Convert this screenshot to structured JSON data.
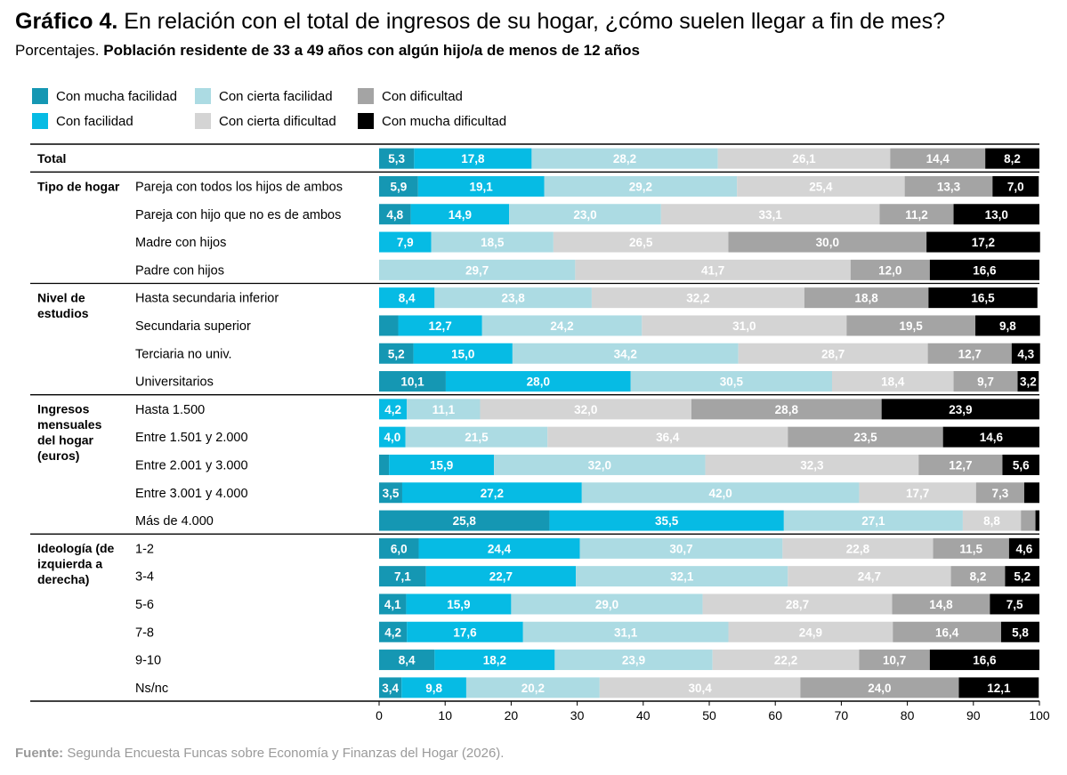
{
  "header": {
    "title_bold": "Gráfico 4.",
    "title_rest": " En relación con el total de ingresos de su hogar, ¿cómo suelen llegar a fin de mes?",
    "subtitle_prefix": "Porcentajes. ",
    "subtitle_bold": "Población residente de 33 a 49 años con algún hijo/a de menos de 12 años"
  },
  "footer": {
    "source_label": "Fuente:",
    "source_text": " Segunda Encuesta Funcas sobre Economía y Finanzas del Hogar (2026)."
  },
  "chart_data": {
    "type": "bar",
    "orientation": "horizontal",
    "stacked": true,
    "xlim": [
      0,
      100
    ],
    "xticks": [
      0,
      10,
      20,
      30,
      40,
      50,
      60,
      70,
      80,
      90,
      100
    ],
    "legend_position": "top-left",
    "series": [
      {
        "name": "Con mucha facilidad",
        "color": "#1597b3"
      },
      {
        "name": "Con facilidad",
        "color": "#06bbe4"
      },
      {
        "name": "Con cierta facilidad",
        "color": "#acdbe3"
      },
      {
        "name": "Con cierta dificultad",
        "color": "#d4d4d4"
      },
      {
        "name": "Con dificultad",
        "color": "#a4a4a4"
      },
      {
        "name": "Con mucha dificultad",
        "color": "#000000"
      }
    ],
    "groups": [
      {
        "label": "Total",
        "rows": [
          {
            "label": "",
            "values": [
              5.3,
              17.8,
              28.2,
              26.1,
              14.4,
              8.2
            ]
          }
        ]
      },
      {
        "label": "Tipo de hogar",
        "rows": [
          {
            "label": "Pareja con todos los hijos de ambos",
            "values": [
              5.9,
              19.1,
              29.2,
              25.4,
              13.3,
              7.0
            ]
          },
          {
            "label": "Pareja con hijo que no es de ambos",
            "values": [
              4.8,
              14.9,
              23.0,
              33.1,
              11.2,
              13.0
            ]
          },
          {
            "label": "Madre con hijos",
            "values": [
              0,
              7.9,
              18.5,
              26.5,
              30.0,
              17.2
            ]
          },
          {
            "label": "Padre con hijos",
            "values": [
              0,
              0,
              29.7,
              41.7,
              12.0,
              16.6
            ]
          }
        ]
      },
      {
        "label": "Nivel de estudios",
        "rows": [
          {
            "label": "Hasta secundaria inferior",
            "values": [
              0,
              8.4,
              23.8,
              32.2,
              18.8,
              16.5
            ]
          },
          {
            "label": "Secundaria superior",
            "values": [
              2.9,
              12.7,
              24.2,
              31.0,
              19.5,
              9.8
            ]
          },
          {
            "label": "Terciaria no univ.",
            "values": [
              5.2,
              15.0,
              34.2,
              28.7,
              12.7,
              4.3
            ]
          },
          {
            "label": "Universitarios",
            "values": [
              10.1,
              28.0,
              30.5,
              18.4,
              9.7,
              3.2
            ]
          }
        ]
      },
      {
        "label": "Ingresos mensuales del hogar (euros)",
        "rows": [
          {
            "label": "Hasta 1.500",
            "values": [
              0,
              4.2,
              11.1,
              32.0,
              28.8,
              23.9
            ]
          },
          {
            "label": "Entre 1.501 y 2.000",
            "values": [
              0,
              4.0,
              21.5,
              36.4,
              23.5,
              14.6
            ]
          },
          {
            "label": "Entre 2.001 y 3.000",
            "values": [
              1.5,
              15.9,
              32.0,
              32.3,
              12.7,
              5.6
            ]
          },
          {
            "label": "Entre 3.001 y 4.000",
            "values": [
              3.5,
              27.2,
              42.0,
              17.7,
              7.3,
              2.3
            ]
          },
          {
            "label": "Más de 4.000",
            "values": [
              25.8,
              35.5,
              27.1,
              8.8,
              2.2,
              0.6
            ]
          }
        ]
      },
      {
        "label": "Ideología (de izquierda a derecha)",
        "rows": [
          {
            "label": "1-2",
            "values": [
              6.0,
              24.4,
              30.7,
              22.8,
              11.5,
              4.6
            ]
          },
          {
            "label": "3-4",
            "values": [
              7.1,
              22.7,
              32.1,
              24.7,
              8.2,
              5.2
            ]
          },
          {
            "label": "5-6",
            "values": [
              4.1,
              15.9,
              29.0,
              28.7,
              14.8,
              7.5
            ]
          },
          {
            "label": "7-8",
            "values": [
              4.2,
              17.6,
              31.1,
              24.9,
              16.4,
              5.8
            ]
          },
          {
            "label": "9-10",
            "values": [
              8.4,
              18.2,
              23.9,
              22.2,
              10.7,
              16.6
            ]
          },
          {
            "label": "Ns/nc",
            "values": [
              3.4,
              9.8,
              20.2,
              30.4,
              24.0,
              12.1
            ]
          }
        ]
      }
    ]
  }
}
